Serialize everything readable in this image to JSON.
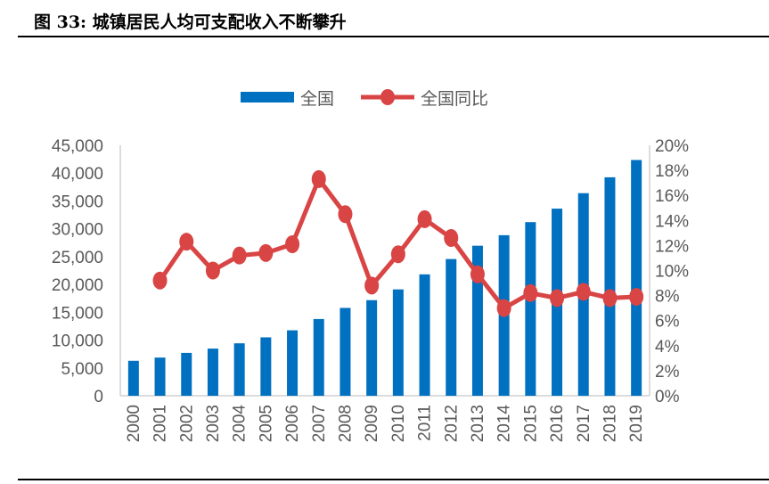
{
  "title": "图  33:  城镇居民人均可支配收入不断攀升",
  "chart_data": {
    "type": "bar+line",
    "categories": [
      "2000",
      "2001",
      "2002",
      "2003",
      "2004",
      "2005",
      "2006",
      "2007",
      "2008",
      "2009",
      "2010",
      "2011",
      "2012",
      "2013",
      "2014",
      "2015",
      "2016",
      "2017",
      "2018",
      "2019"
    ],
    "series": [
      {
        "name": "全国",
        "type": "bar",
        "axis": "left",
        "color": "#0070C0",
        "values": [
          6280,
          6860,
          7703,
          8472,
          9422,
          10493,
          11759,
          13786,
          15781,
          17175,
          19109,
          21810,
          24565,
          26955,
          28844,
          31195,
          33616,
          36396,
          39251,
          42359
        ]
      },
      {
        "name": "全国同比",
        "type": "line",
        "axis": "right",
        "color": "#D94545",
        "values": [
          null,
          9.2,
          12.3,
          10.0,
          11.2,
          11.4,
          12.1,
          17.3,
          14.5,
          8.8,
          11.3,
          14.1,
          12.6,
          9.7,
          7.0,
          8.2,
          7.8,
          8.3,
          7.8,
          7.9
        ]
      }
    ],
    "left_axis": {
      "ylim": [
        0,
        45000
      ],
      "ticks": [
        "0",
        "5,000",
        "10,000",
        "15,000",
        "20,000",
        "25,000",
        "30,000",
        "35,000",
        "40,000",
        "45,000"
      ]
    },
    "right_axis": {
      "ylim": [
        0,
        20
      ],
      "ticks": [
        "0%",
        "2%",
        "4%",
        "6%",
        "8%",
        "10%",
        "12%",
        "14%",
        "16%",
        "18%",
        "20%"
      ]
    },
    "legend": "top",
    "grid": false
  }
}
